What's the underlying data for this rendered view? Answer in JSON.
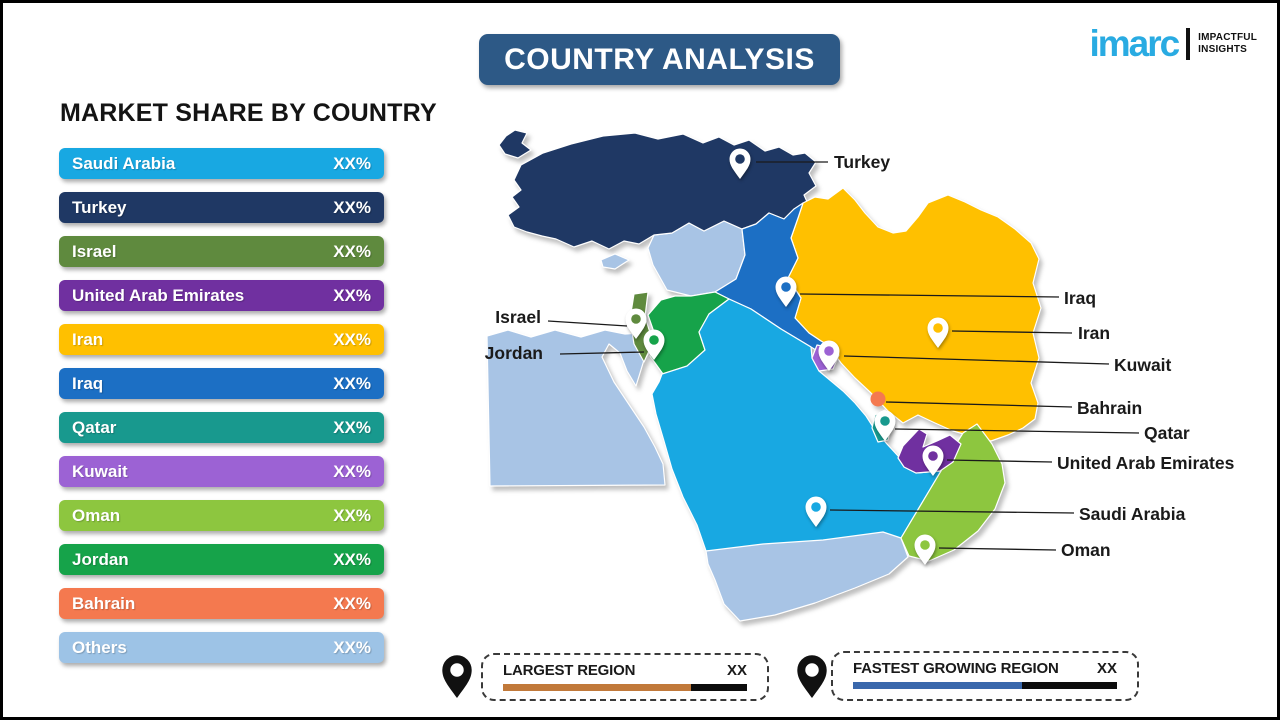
{
  "header": {
    "title": "COUNTRY ANALYSIS",
    "banner_color": "#2D5986"
  },
  "logo": {
    "brand": "imarc",
    "brand_color": "#29ABE2",
    "tagline1": "IMPACTFUL",
    "tagline2": "INSIGHTS"
  },
  "market_share": {
    "heading": "MARKET SHARE BY COUNTRY",
    "items": [
      {
        "label": "Saudi Arabia",
        "value": "XX%",
        "color": "#18A8E2"
      },
      {
        "label": "Turkey",
        "value": "XX%",
        "color": "#1F3864"
      },
      {
        "label": "Israel",
        "value": "XX%",
        "color": "#5F8A3E"
      },
      {
        "label": "United Arab Emirates",
        "value": "XX%",
        "color": "#7030A0"
      },
      {
        "label": "Iran",
        "value": "XX%",
        "color": "#FFC000"
      },
      {
        "label": "Iraq",
        "value": "XX%",
        "color": "#1C6FC4"
      },
      {
        "label": "Qatar",
        "value": "XX%",
        "color": "#18998E"
      },
      {
        "label": "Kuwait",
        "value": "XX%",
        "color": "#9C62D4"
      },
      {
        "label": "Oman",
        "value": "XX%",
        "color": "#8DC63F"
      },
      {
        "label": "Jordan",
        "value": "XX%",
        "color": "#16A34A"
      },
      {
        "label": "Bahrain",
        "value": "XX%",
        "color": "#F4794F"
      },
      {
        "label": "Others",
        "value": "XX%",
        "color": "#9DC3E6"
      }
    ]
  },
  "map": {
    "others_color": "#A8C4E5",
    "labels": {
      "turkey": "Turkey",
      "iraq": "Iraq",
      "iran": "Iran",
      "kuwait": "Kuwait",
      "bahrain": "Bahrain",
      "qatar": "Qatar",
      "uae": "United Arab Emirates",
      "saudi": "Saudi Arabia",
      "oman": "Oman",
      "israel": "Israel",
      "jordan": "Jordan"
    }
  },
  "legend": {
    "largest": {
      "label": "LARGEST REGION",
      "value": "XX",
      "bar_color": "#C1793A",
      "fill_pct": "77%"
    },
    "fastest": {
      "label": "FASTEST GROWING REGION",
      "value": "XX",
      "bar_color": "#3A68AC",
      "fill_pct": "64%"
    }
  },
  "chart_data": {
    "type": "bar",
    "title": "MARKET SHARE BY COUNTRY",
    "categories": [
      "Saudi Arabia",
      "Turkey",
      "Israel",
      "United Arab Emirates",
      "Iran",
      "Iraq",
      "Qatar",
      "Kuwait",
      "Oman",
      "Jordan",
      "Bahrain",
      "Others"
    ],
    "values": [
      "XX%",
      "XX%",
      "XX%",
      "XX%",
      "XX%",
      "XX%",
      "XX%",
      "XX%",
      "XX%",
      "XX%",
      "XX%",
      "XX%"
    ],
    "legend_position": "none",
    "ylabel": "",
    "xlabel": ""
  }
}
